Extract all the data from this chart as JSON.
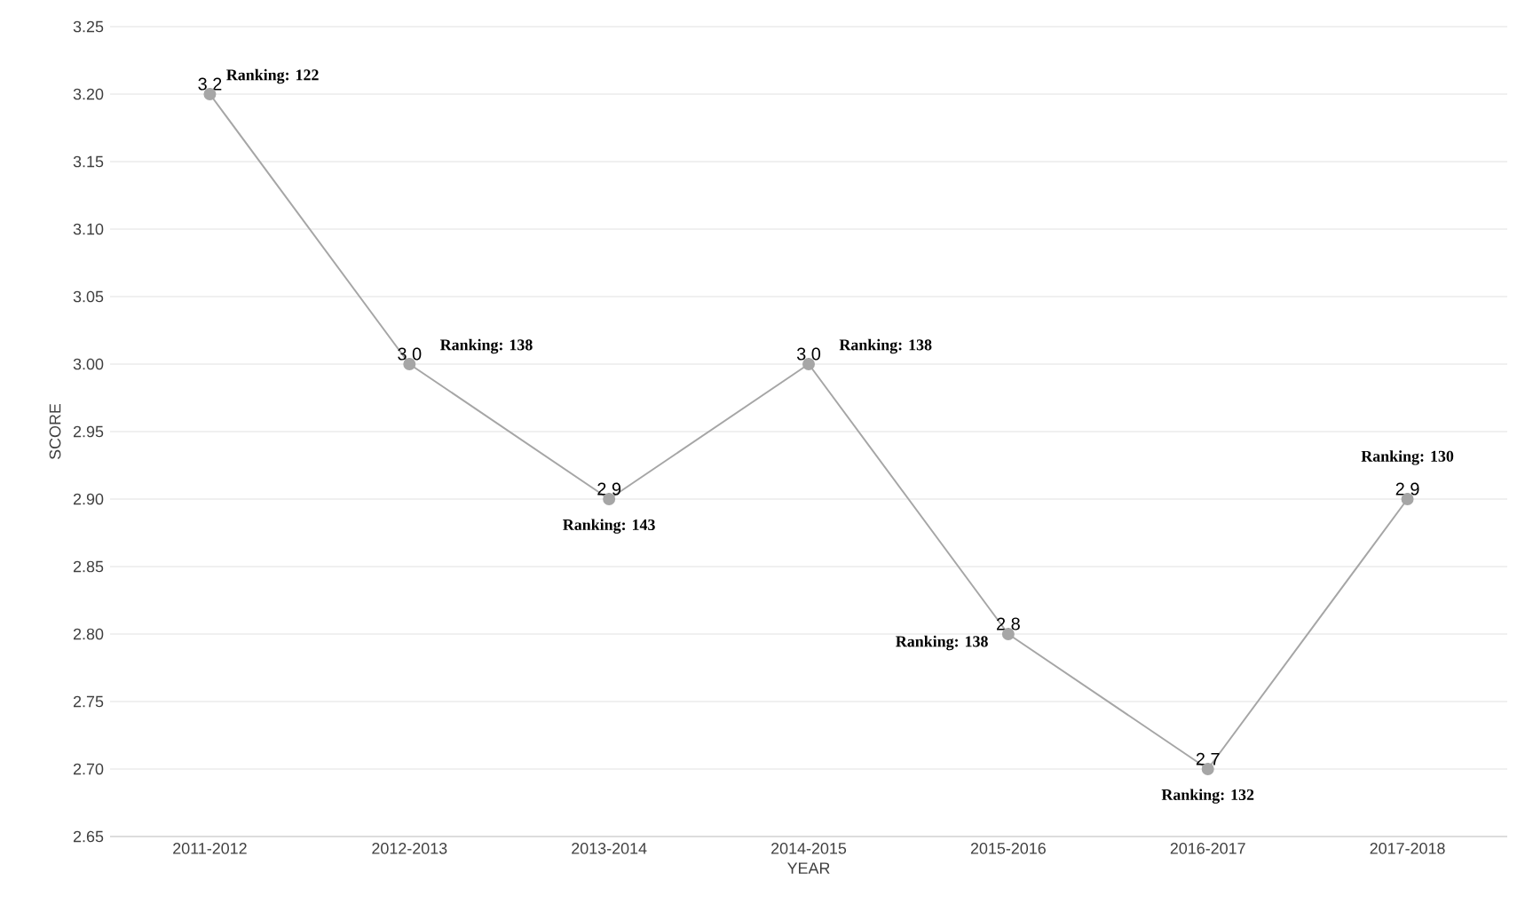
{
  "chart_data": {
    "type": "line",
    "xlabel": "YEAR",
    "ylabel": "SCORE",
    "categories": [
      "2011-2012",
      "2012-2013",
      "2013-2014",
      "2014-2015",
      "2015-2016",
      "2016-2017",
      "2017-2018"
    ],
    "series": [
      {
        "color": "#a6a6a6",
        "values": [
          3.2,
          3.0,
          2.9,
          3.0,
          2.8,
          2.7,
          2.9
        ],
        "value_labels": [
          "3.2",
          "3.0",
          "2.9",
          "3.0",
          "2.8",
          "2.7",
          "2.9"
        ]
      }
    ],
    "ylim": [
      2.65,
      3.25
    ],
    "yticks": [
      {
        "value": 2.65,
        "label": "2.65"
      },
      {
        "value": 2.7,
        "label": "2.70"
      },
      {
        "value": 2.75,
        "label": "2.75"
      },
      {
        "value": 2.8,
        "label": "2.80"
      },
      {
        "value": 2.85,
        "label": "2.85"
      },
      {
        "value": 2.9,
        "label": "2.90"
      },
      {
        "value": 2.95,
        "label": "2.95"
      },
      {
        "value": 3.0,
        "label": "3.00"
      },
      {
        "value": 3.05,
        "label": "3.05"
      },
      {
        "value": 3.1,
        "label": "3.10"
      },
      {
        "value": 3.15,
        "label": "3.15"
      },
      {
        "value": 3.2,
        "label": "3.20"
      },
      {
        "value": 3.25,
        "label": "3.25"
      }
    ],
    "grid": "y",
    "marker": "circle",
    "line_style": "solid",
    "annotations": [
      {
        "text": "Ranking: 122",
        "x": "2011-2012",
        "y": 3.2
      },
      {
        "text": "Ranking: 138",
        "x": "2012-2013",
        "y": 3.0
      },
      {
        "text": "Ranking: 143",
        "x": "2013-2014",
        "y": 2.9
      },
      {
        "text": "Ranking: 138",
        "x": "2014-2015",
        "y": 3.0
      },
      {
        "text": "Ranking: 138",
        "x": "2015-2016",
        "y": 2.8
      },
      {
        "text": "Ranking: 132",
        "x": "2016-2017",
        "y": 2.7
      },
      {
        "text": "Ranking: 130",
        "x": "2017-2018",
        "y": 2.9
      }
    ]
  }
}
